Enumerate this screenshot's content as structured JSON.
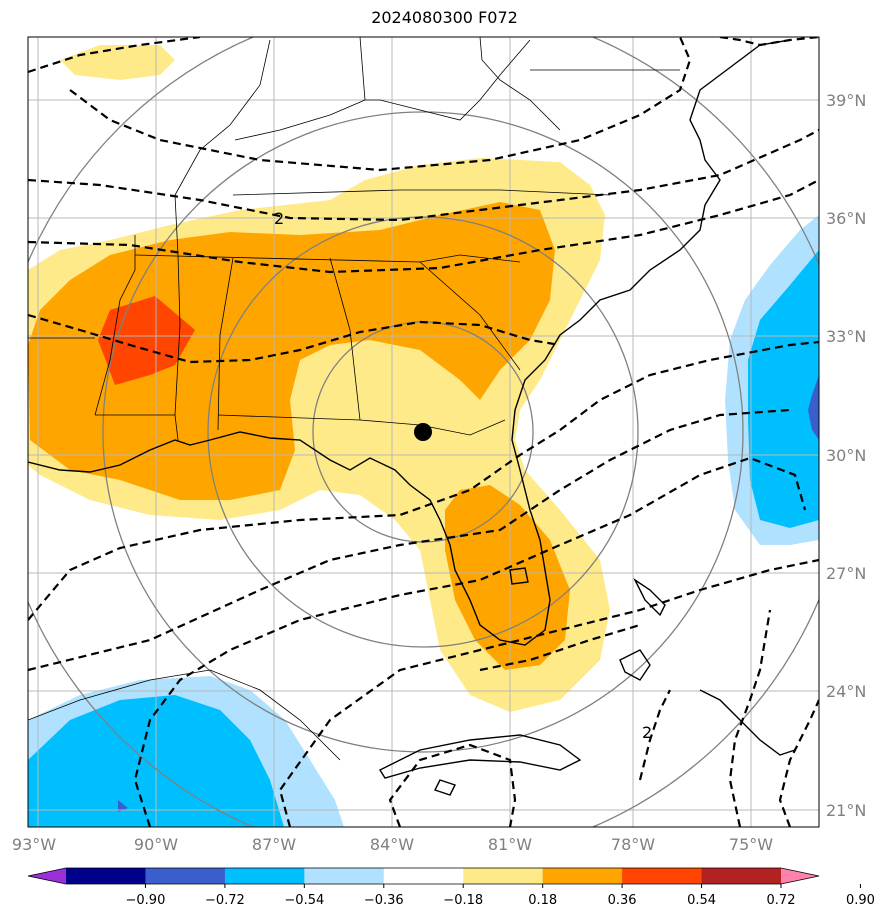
{
  "title": "2024080300 F072",
  "lon_labels": [
    "93°W",
    "90°W",
    "87°W",
    "84°W",
    "81°W",
    "78°W",
    "75°W"
  ],
  "lat_labels": [
    "39°N",
    "36°N",
    "33°N",
    "30°N",
    "27°N",
    "24°N",
    "21°N"
  ],
  "contour_labels": [
    "2",
    "2"
  ],
  "colorbar": {
    "ticks": [
      "−0.90",
      "−0.72",
      "−0.54",
      "−0.36",
      "−0.18",
      "0.18",
      "0.36",
      "0.54",
      "0.72",
      "0.90"
    ],
    "colors": [
      "#9b30d9",
      "#00008b",
      "#3a5fcd",
      "#00bfff",
      "#b0e2ff",
      "#ffffff",
      "#ffea8a",
      "#ffa500",
      "#ff4500",
      "#b22222",
      "#ff82ab"
    ]
  },
  "marker": "center-point"
}
